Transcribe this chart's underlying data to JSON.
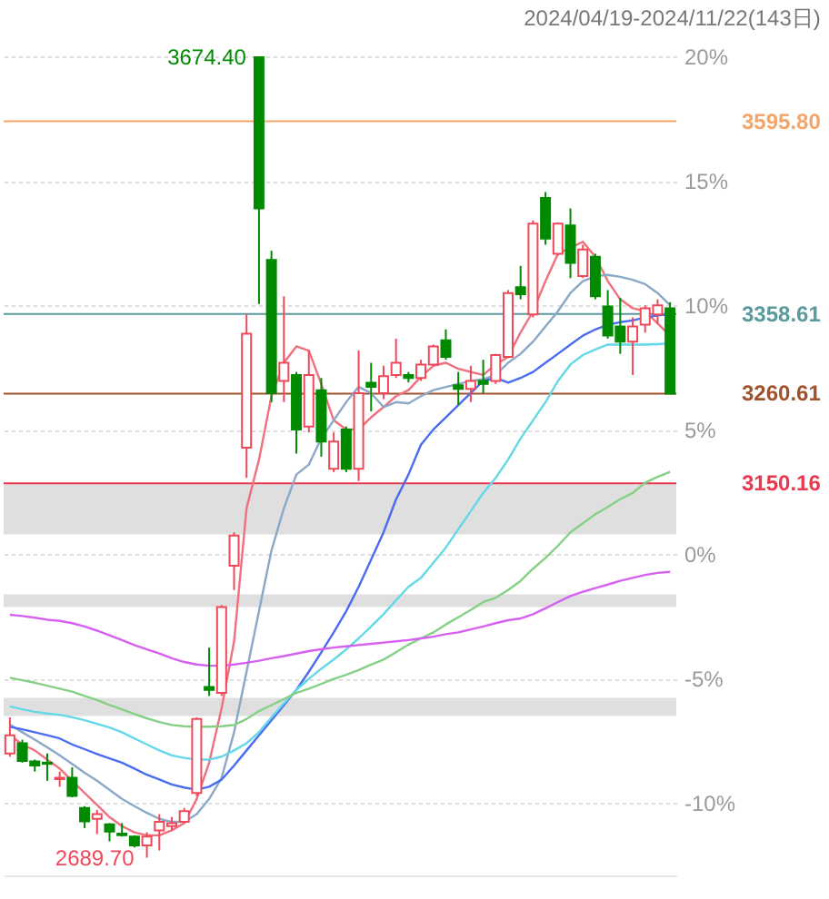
{
  "chart_data": {
    "type": "candlestick",
    "title": "2024/04/19-2024/11/22(143日)",
    "categories": [
      null,
      null,
      null,
      null,
      null,
      null,
      null,
      null,
      null,
      null,
      null,
      null,
      null,
      null,
      null,
      null,
      null,
      null,
      null,
      null,
      null,
      null,
      null,
      null,
      null,
      null,
      null,
      null,
      null,
      null,
      null,
      null,
      null,
      null,
      null,
      null,
      null,
      null,
      null,
      null,
      null,
      null,
      null,
      null,
      null,
      null,
      null,
      null,
      null,
      null,
      null,
      null,
      null,
      null
    ],
    "ohlc": [
      [
        -8.0,
        -6.55,
        -8.13,
        -7.27
      ],
      [
        -7.59,
        -7.45,
        -8.37,
        -8.3
      ],
      [
        -8.32,
        -8.25,
        -8.73,
        -8.49
      ],
      [
        -8.37,
        -8.0,
        -9.1,
        -8.42
      ],
      [
        -9.03,
        -8.73,
        -9.34,
        -8.98
      ],
      [
        -8.98,
        -8.56,
        -9.76,
        -9.71
      ],
      [
        -10.19,
        -10.12,
        -11.0,
        -10.73
      ],
      [
        -10.63,
        -10.27,
        -11.24,
        -10.44
      ],
      [
        -10.85,
        -10.8,
        -11.53,
        -11.14
      ],
      [
        -11.22,
        -10.8,
        -11.34,
        -11.29
      ],
      [
        -11.34,
        -11.29,
        -11.78,
        -11.7
      ],
      [
        -11.7,
        -11.17,
        -12.19,
        -11.34
      ],
      [
        -11.09,
        -10.44,
        -11.9,
        -10.75
      ],
      [
        -10.92,
        -10.56,
        -11.09,
        -10.8
      ],
      [
        -10.75,
        -10.19,
        -10.8,
        -10.32
      ],
      [
        -9.59,
        -6.55,
        -9.71,
        -6.62
      ],
      [
        -5.33,
        -3.75,
        -5.69,
        -5.45
      ],
      [
        -5.57,
        -2.04,
        -5.69,
        -2.12
      ],
      [
        -0.46,
        0.88,
        -1.44,
        0.75
      ],
      [
        4.28,
        9.63,
        3.07,
        8.86
      ],
      [
        19.96,
        19.96,
        10.05,
        13.89
      ],
      [
        11.82,
        12.19,
        6.11,
        6.47
      ],
      [
        6.96,
        10.36,
        6.11,
        7.69
      ],
      [
        7.2,
        7.32,
        4.04,
        5.01
      ],
      [
        5.13,
        8.18,
        4.89,
        7.2
      ],
      [
        6.59,
        7.08,
        3.92,
        4.53
      ],
      [
        3.43,
        4.89,
        3.3,
        4.53
      ],
      [
        5.01,
        5.13,
        3.3,
        3.43
      ],
      [
        3.43,
        8.18,
        2.94,
        6.47
      ],
      [
        6.89,
        7.69,
        5.74,
        6.72
      ],
      [
        6.47,
        7.57,
        6.23,
        7.15
      ],
      [
        7.2,
        8.66,
        7.08,
        7.69
      ],
      [
        7.2,
        7.32,
        6.9,
        7.08
      ],
      [
        7.08,
        7.81,
        6.96,
        7.62
      ],
      [
        7.62,
        8.42,
        7.57,
        8.35
      ],
      [
        8.59,
        9.03,
        7.81,
        7.93
      ],
      [
        6.79,
        7.32,
        5.99,
        6.64
      ],
      [
        6.64,
        7.57,
        6.11,
        6.96
      ],
      [
        6.96,
        7.81,
        6.47,
        6.84
      ],
      [
        6.96,
        8.05,
        6.84,
        8.0
      ],
      [
        7.93,
        10.61,
        7.88,
        10.49
      ],
      [
        10.73,
        11.58,
        10.24,
        10.44
      ],
      [
        9.63,
        13.41,
        9.51,
        13.28
      ],
      [
        14.31,
        14.55,
        12.43,
        12.68
      ],
      [
        12.07,
        13.33,
        12.0,
        13.28
      ],
      [
        13.21,
        13.89,
        11.09,
        11.7
      ],
      [
        11.17,
        12.43,
        11.09,
        12.24
      ],
      [
        11.95,
        12.07,
        10.24,
        10.36
      ],
      [
        9.95,
        10.61,
        8.66,
        8.78
      ],
      [
        9.15,
        10.29,
        8.05,
        8.54
      ],
      [
        8.54,
        9.51,
        7.2,
        9.15
      ],
      [
        9.22,
        10.0,
        8.9,
        9.88
      ],
      [
        9.63,
        10.24,
        9.27,
        10.0
      ],
      [
        9.88,
        10.12,
        6.45,
        6.45
      ]
    ],
    "colors": [
      "#f04858",
      "#008a00",
      "#008a00",
      "#008a00",
      "#f04858",
      "#008a00",
      "#008a00",
      "#f04858",
      "#008a00",
      "#008a00",
      "#008a00",
      "#f04858",
      "#f04858",
      "#f04858",
      "#f04858",
      "#f04858",
      "#008a00",
      "#f04858",
      "#f04858",
      "#f04858",
      "#008a00",
      "#008a00",
      "#f04858",
      "#008a00",
      "#f04858",
      "#008a00",
      "#f04858",
      "#008a00",
      "#f04858",
      "#008a00",
      "#f04858",
      "#f04858",
      "#008a00",
      "#f04858",
      "#f04858",
      "#008a00",
      "#008a00",
      "#f04858",
      "#008a00",
      "#f04858",
      "#f04858",
      "#008a00",
      "#f04858",
      "#008a00",
      "#f04858",
      "#008a00",
      "#f04858",
      "#008a00",
      "#008a00",
      "#008a00",
      "#f04858",
      "#f04858",
      "#f04858",
      "#008a00"
    ],
    "series": [
      {
        "type": "line",
        "color": "#f0707d",
        "values": [
          -7.27,
          -7.64,
          -7.88,
          -8.25,
          -8.61,
          -9.1,
          -9.59,
          -10.07,
          -10.56,
          -10.92,
          -11.17,
          -11.29,
          -11.29,
          -11.09,
          -10.8,
          -9.83,
          -8.37,
          -6.18,
          -3.5,
          1.85,
          3.8,
          6.35,
          7.69,
          8.35,
          8.18,
          6.84,
          5.38,
          5.01,
          5.01,
          5.5,
          5.91,
          6.35,
          6.59,
          7.13,
          7.57,
          7.69,
          7.45,
          7.32,
          7.2,
          7.62,
          7.93,
          8.91,
          9.76,
          10.97,
          12.07,
          12.31,
          12.55,
          11.95,
          10.97,
          10.24,
          9.88,
          9.76,
          9.27,
          8.78
        ]
      },
      {
        "type": "line",
        "color": "#8aa8c8",
        "values": [
          -6.84,
          -7.15,
          -7.45,
          -7.76,
          -8.08,
          -8.42,
          -8.78,
          -9.1,
          -9.46,
          -9.83,
          -10.12,
          -10.39,
          -10.63,
          -10.75,
          -10.75,
          -10.44,
          -9.83,
          -8.98,
          -7.15,
          -4.72,
          -2.29,
          0.15,
          1.85,
          3.2,
          3.6,
          4.65,
          5.38,
          6.11,
          6.72,
          6.47,
          5.91,
          6.11,
          6.06,
          6.35,
          6.59,
          6.72,
          6.84,
          6.96,
          7.03,
          7.2,
          7.69,
          8.05,
          8.54,
          9.15,
          9.76,
          10.49,
          10.97,
          11.17,
          11.22,
          11.14,
          11.02,
          10.85,
          10.49,
          10.0
        ]
      },
      {
        "type": "line",
        "color": "#4a6cf0",
        "values": [
          -6.93,
          -7.03,
          -7.15,
          -7.27,
          -7.4,
          -7.64,
          -7.83,
          -8.03,
          -8.2,
          -8.37,
          -8.61,
          -8.86,
          -9.05,
          -9.25,
          -9.37,
          -9.46,
          -9.34,
          -9.05,
          -8.49,
          -7.88,
          -7.27,
          -6.67,
          -6.06,
          -5.45,
          -4.72,
          -3.94,
          -3.14,
          -2.29,
          -1.31,
          -0.22,
          0.88,
          2.2,
          3.2,
          4.4,
          5.01,
          5.5,
          5.99,
          6.47,
          6.96,
          7.08,
          6.89,
          7.08,
          7.32,
          7.69,
          8.05,
          8.42,
          8.78,
          9.03,
          9.22,
          9.32,
          9.39,
          9.51,
          9.59,
          9.64
        ]
      },
      {
        "type": "line",
        "color": "#62d8e8",
        "values": [
          -6.11,
          -6.23,
          -6.33,
          -6.4,
          -6.45,
          -6.55,
          -6.67,
          -6.81,
          -6.96,
          -7.15,
          -7.4,
          -7.64,
          -7.88,
          -8.08,
          -8.18,
          -8.25,
          -8.25,
          -8.13,
          -7.88,
          -7.59,
          -7.15,
          -6.55,
          -5.99,
          -5.45,
          -5.01,
          -4.6,
          -4.23,
          -3.82,
          -3.38,
          -2.9,
          -2.41,
          -1.85,
          -1.31,
          -0.95,
          -0.34,
          0.27,
          1.0,
          1.73,
          2.46,
          3.07,
          3.8,
          4.65,
          5.38,
          6.11,
          6.96,
          7.62,
          8.0,
          8.22,
          8.42,
          8.42,
          8.42,
          8.42,
          8.44,
          8.47
        ]
      },
      {
        "type": "line",
        "color": "#86d086",
        "values": [
          -4.96,
          -5.06,
          -5.16,
          -5.28,
          -5.4,
          -5.52,
          -5.69,
          -5.86,
          -6.06,
          -6.23,
          -6.42,
          -6.59,
          -6.74,
          -6.86,
          -6.91,
          -6.93,
          -6.93,
          -6.91,
          -6.86,
          -6.62,
          -6.3,
          -6.06,
          -5.82,
          -5.57,
          -5.4,
          -5.21,
          -5.01,
          -4.84,
          -4.65,
          -4.43,
          -4.23,
          -3.94,
          -3.63,
          -3.38,
          -3.14,
          -2.82,
          -2.53,
          -2.24,
          -1.92,
          -1.75,
          -1.44,
          -1.07,
          -0.58,
          -0.15,
          0.34,
          0.88,
          1.24,
          1.61,
          1.9,
          2.21,
          2.46,
          2.87,
          3.11,
          3.31
        ]
      },
      {
        "type": "line",
        "color": "#d660f0",
        "values": [
          -2.43,
          -2.48,
          -2.55,
          -2.63,
          -2.68,
          -2.77,
          -2.9,
          -3.07,
          -3.26,
          -3.45,
          -3.65,
          -3.82,
          -3.99,
          -4.18,
          -4.33,
          -4.43,
          -4.48,
          -4.48,
          -4.43,
          -4.36,
          -4.28,
          -4.18,
          -4.09,
          -3.99,
          -3.89,
          -3.82,
          -3.75,
          -3.7,
          -3.65,
          -3.6,
          -3.55,
          -3.5,
          -3.45,
          -3.38,
          -3.31,
          -3.21,
          -3.14,
          -3.02,
          -2.9,
          -2.77,
          -2.65,
          -2.58,
          -2.41,
          -2.17,
          -1.92,
          -1.68,
          -1.51,
          -1.36,
          -1.22,
          -1.07,
          -0.95,
          -0.83,
          -0.75,
          -0.71
        ]
      }
    ],
    "ylim": [
      -12.9,
      20
    ],
    "yticks": [
      {
        "value": 20,
        "label": "20%"
      },
      {
        "value": 15,
        "label": "15%"
      },
      {
        "value": 10,
        "label": "10%"
      },
      {
        "value": 5,
        "label": "5%"
      },
      {
        "value": 0,
        "label": "0%"
      },
      {
        "value": -5,
        "label": "-5%"
      },
      {
        "value": -10,
        "label": "-10%"
      }
    ],
    "grid": "y",
    "ref_lines": [
      {
        "axis": "y",
        "value": 17.39,
        "color": "#f5a56b"
      },
      {
        "axis": "y",
        "value": 9.65,
        "color": "#5b9a9c"
      },
      {
        "axis": "y",
        "value": 6.45,
        "color": "#a0522d"
      },
      {
        "axis": "y",
        "value": 2.85,
        "color": "#e8394f"
      }
    ],
    "bands": [
      {
        "axis": "y",
        "from": 0.8,
        "to": 2.85,
        "color": "#dcdcdc"
      },
      {
        "axis": "y",
        "from": -2.12,
        "to": -1.61,
        "color": "#dcdcdc"
      },
      {
        "axis": "y",
        "from": -6.5,
        "to": -5.77,
        "color": "#dcdcdc"
      }
    ],
    "annotations": [
      "3674.40",
      "2689.70",
      "3595.80",
      "3358.61",
      "3260.61",
      "3150.16"
    ]
  }
}
